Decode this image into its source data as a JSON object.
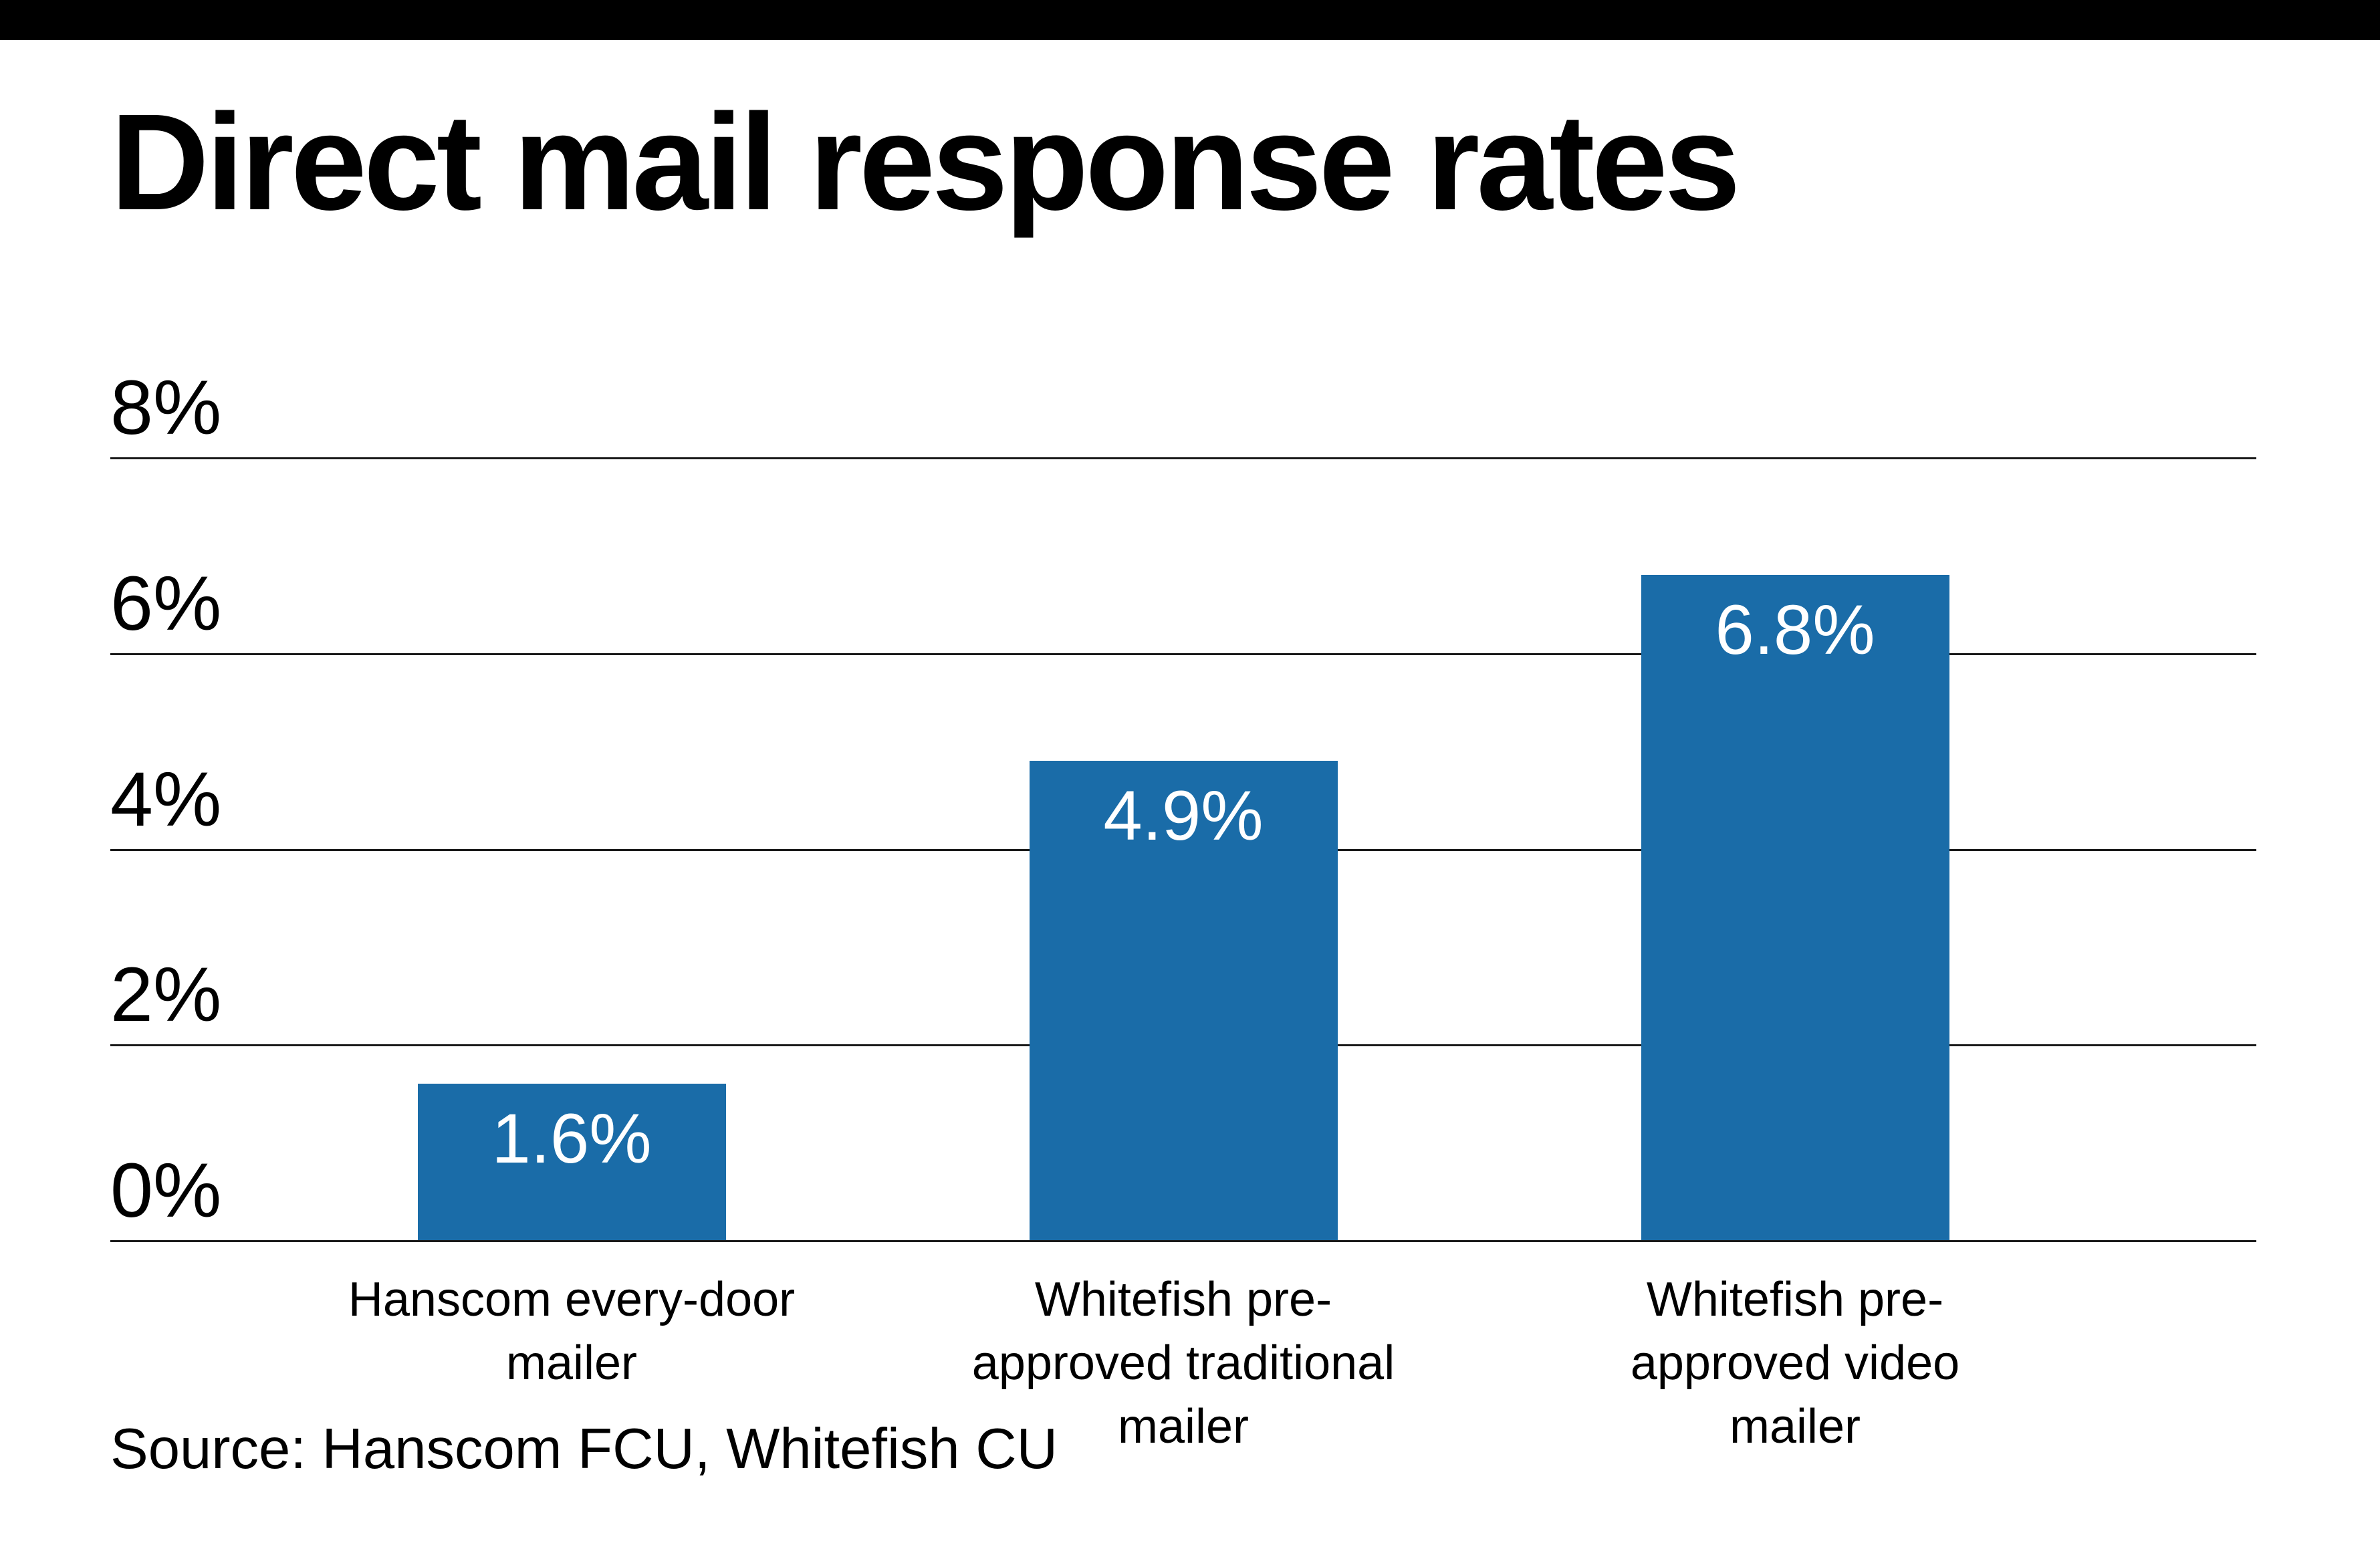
{
  "chart_data": {
    "type": "bar",
    "title": "Direct mail response rates",
    "categories": [
      "Hanscom every-door mailer",
      "Whitefish pre-approved traditional mailer",
      "Whitefish pre-approved video mailer"
    ],
    "category_lines": [
      [
        "Hanscom every-door",
        "mailer"
      ],
      [
        "Whitefish pre-",
        "approved traditional",
        "mailer"
      ],
      [
        "Whitefish pre-",
        "approved video",
        "mailer"
      ]
    ],
    "values": [
      1.6,
      4.9,
      6.8
    ],
    "value_labels": [
      "1.6%",
      "4.9%",
      "6.8%"
    ],
    "y_ticks": [
      "8%",
      "6%",
      "4%",
      "2%",
      "0%"
    ],
    "ylim": [
      0,
      8
    ],
    "xlabel": "",
    "ylabel": "",
    "grid": true,
    "legend": "none",
    "bar_color": "#1a6ca8",
    "source": "Source: Hanscom FCU, Whitefish CU"
  }
}
